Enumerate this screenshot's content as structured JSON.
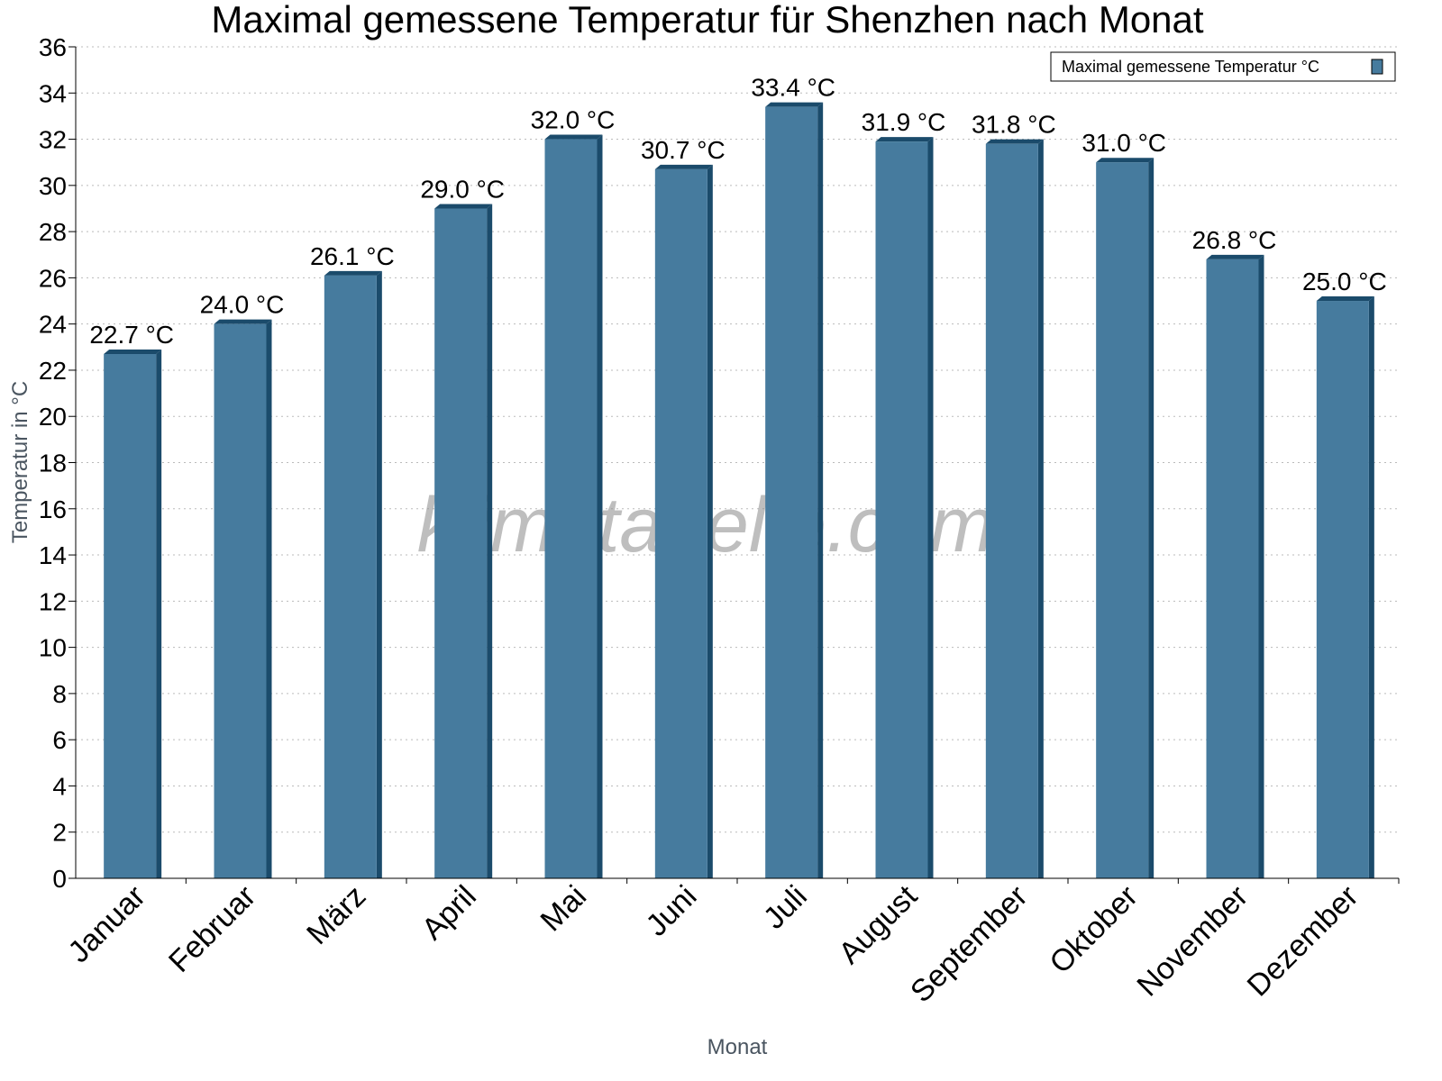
{
  "chart_data": {
    "type": "bar",
    "title": "Maximal gemessene Temperatur für Shenzhen nach Monat",
    "xlabel": "Monat",
    "ylabel": "Temperatur in °C",
    "ylim": [
      0,
      36
    ],
    "ytick_step": 2,
    "grid": true,
    "legend_position": "top-right",
    "categories": [
      "Januar",
      "Februar",
      "März",
      "April",
      "Mai",
      "Juni",
      "Juli",
      "August",
      "September",
      "Oktober",
      "November",
      "Dezember"
    ],
    "series": [
      {
        "name": "Maximal gemessene Temperatur °C",
        "values": [
          22.7,
          24.0,
          26.1,
          29.0,
          32.0,
          30.7,
          33.4,
          31.9,
          31.8,
          31.0,
          26.8,
          25.0
        ],
        "data_labels": [
          "22.7 °C",
          "24.0 °C",
          "26.1 °C",
          "29.0 °C",
          "32.0 °C",
          "30.7 °C",
          "33.4 °C",
          "31.9 °C",
          "31.8 °C",
          "31.0 °C",
          "26.8 °C",
          "25.0 °C"
        ],
        "color": "#467b9e",
        "shade_color": "#1b4b6b"
      }
    ],
    "watermark": "klimatabelle.com"
  }
}
